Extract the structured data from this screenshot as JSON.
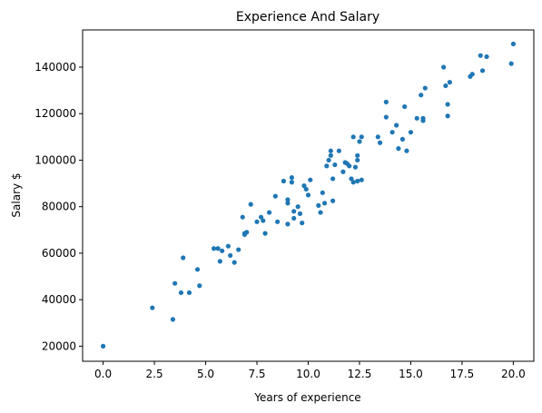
{
  "chart_data": {
    "type": "scatter",
    "title": "Experience And Salary",
    "xlabel": "Years of experience",
    "ylabel": "Salary $",
    "xlim": [
      -1.0,
      21.0
    ],
    "ylim": [
      13500,
      156000
    ],
    "xticks": [
      0.0,
      2.5,
      5.0,
      7.5,
      10.0,
      12.5,
      15.0,
      17.5,
      20.0
    ],
    "xtick_labels": [
      "0.0",
      "2.5",
      "5.0",
      "7.5",
      "10.0",
      "12.5",
      "15.0",
      "17.5",
      "20.0"
    ],
    "yticks": [
      20000,
      40000,
      60000,
      80000,
      100000,
      120000,
      140000
    ],
    "ytick_labels": [
      "20000",
      "40000",
      "60000",
      "80000",
      "100000",
      "120000",
      "140000"
    ],
    "grid": false,
    "marker_color": "#1f77b4",
    "series": [
      {
        "points": [
          [
            0.0,
            20000
          ],
          [
            2.4,
            36500
          ],
          [
            3.4,
            31500
          ],
          [
            3.5,
            47000
          ],
          [
            3.8,
            43000
          ],
          [
            3.9,
            58000
          ],
          [
            4.2,
            43000
          ],
          [
            4.6,
            53000
          ],
          [
            4.7,
            46000
          ],
          [
            5.4,
            62000
          ],
          [
            5.6,
            62000
          ],
          [
            5.7,
            56500
          ],
          [
            5.8,
            61000
          ],
          [
            6.1,
            63000
          ],
          [
            6.2,
            59000
          ],
          [
            6.4,
            56000
          ],
          [
            6.6,
            61500
          ],
          [
            6.8,
            75500
          ],
          [
            6.9,
            68500
          ],
          [
            6.9,
            68000
          ],
          [
            7.0,
            69000
          ],
          [
            7.2,
            81000
          ],
          [
            7.5,
            73500
          ],
          [
            7.7,
            75500
          ],
          [
            7.8,
            74000
          ],
          [
            7.9,
            68500
          ],
          [
            8.1,
            77500
          ],
          [
            8.4,
            84500
          ],
          [
            8.5,
            73500
          ],
          [
            8.8,
            91000
          ],
          [
            9.0,
            83000
          ],
          [
            9.0,
            81500
          ],
          [
            9.0,
            72500
          ],
          [
            9.2,
            92500
          ],
          [
            9.2,
            90500
          ],
          [
            9.3,
            78000
          ],
          [
            9.3,
            75000
          ],
          [
            9.5,
            80000
          ],
          [
            9.6,
            77000
          ],
          [
            9.7,
            73000
          ],
          [
            9.8,
            89000
          ],
          [
            9.9,
            87500
          ],
          [
            10.0,
            85000
          ],
          [
            10.1,
            91500
          ],
          [
            10.5,
            80500
          ],
          [
            10.6,
            77500
          ],
          [
            10.7,
            86000
          ],
          [
            10.8,
            81500
          ],
          [
            10.9,
            97500
          ],
          [
            11.0,
            100000
          ],
          [
            11.1,
            102000
          ],
          [
            11.1,
            104000
          ],
          [
            11.2,
            92000
          ],
          [
            11.2,
            82500
          ],
          [
            11.3,
            98000
          ],
          [
            11.5,
            104000
          ],
          [
            11.7,
            95000
          ],
          [
            11.8,
            99000
          ],
          [
            11.9,
            98500
          ],
          [
            12.0,
            97500
          ],
          [
            12.1,
            92000
          ],
          [
            12.2,
            110000
          ],
          [
            12.2,
            90500
          ],
          [
            12.3,
            97000
          ],
          [
            12.4,
            102000
          ],
          [
            12.4,
            100000
          ],
          [
            12.4,
            91000
          ],
          [
            12.5,
            108000
          ],
          [
            12.6,
            110000
          ],
          [
            12.6,
            91500
          ],
          [
            13.4,
            110000
          ],
          [
            13.5,
            107500
          ],
          [
            13.8,
            118500
          ],
          [
            13.8,
            125000
          ],
          [
            14.1,
            112000
          ],
          [
            14.3,
            115000
          ],
          [
            14.4,
            105000
          ],
          [
            14.6,
            109000
          ],
          [
            14.7,
            123000
          ],
          [
            14.8,
            104000
          ],
          [
            15.0,
            112000
          ],
          [
            15.3,
            118000
          ],
          [
            15.5,
            128000
          ],
          [
            15.6,
            117000
          ],
          [
            15.6,
            118000
          ],
          [
            15.7,
            131000
          ],
          [
            16.6,
            140000
          ],
          [
            16.7,
            132000
          ],
          [
            16.8,
            119000
          ],
          [
            16.8,
            124000
          ],
          [
            16.9,
            133500
          ],
          [
            17.9,
            136000
          ],
          [
            18.0,
            137000
          ],
          [
            18.4,
            145000
          ],
          [
            18.5,
            138500
          ],
          [
            18.7,
            144500
          ],
          [
            19.9,
            141500
          ],
          [
            20.0,
            150000
          ]
        ]
      }
    ]
  }
}
